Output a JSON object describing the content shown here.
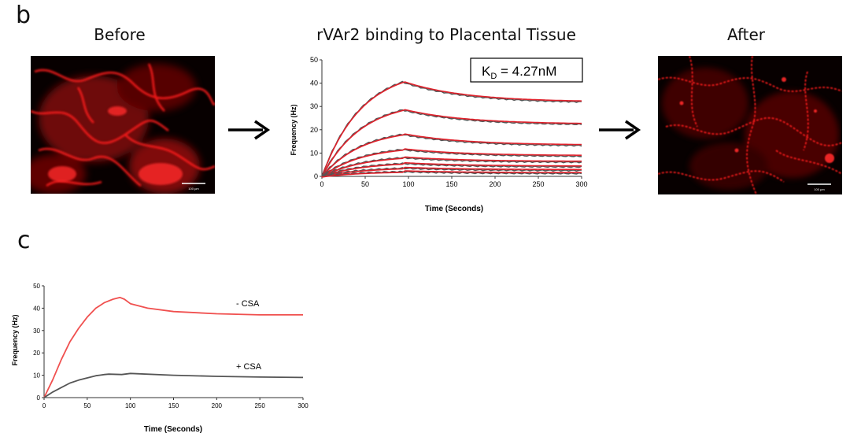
{
  "panel_b": {
    "letter": "b",
    "before_title": "Before",
    "after_title": "After",
    "scale_bar_label": "100 µm"
  },
  "panel_c": {
    "letter": "c"
  },
  "chart_data": [
    {
      "type": "line",
      "title": "rVAr2 binding to Placental Tissue",
      "xlabel": "Time (Seconds)",
      "ylabel": "Frequency (Hz)",
      "xlim": [
        0,
        300
      ],
      "ylim": [
        0,
        50
      ],
      "xticks": [
        0,
        50,
        100,
        150,
        200,
        250,
        300
      ],
      "yticks": [
        0,
        10,
        20,
        30,
        40,
        50
      ],
      "annotation": "K",
      "annotation_sub": "D",
      "annotation_rest": " = 4.27nM",
      "colors": {
        "measured": "#555555",
        "fit": "#e0212b"
      },
      "injection_end": 93,
      "series": [
        {
          "peak": 40.5,
          "end": 31.5
        },
        {
          "peak": 28.5,
          "end": 22.0
        },
        {
          "peak": 18.0,
          "end": 13.0
        },
        {
          "peak": 11.5,
          "end": 8.5
        },
        {
          "peak": 8.0,
          "end": 6.0
        },
        {
          "peak": 5.5,
          "end": 4.0
        },
        {
          "peak": 3.5,
          "end": 2.5
        },
        {
          "peak": 2.0,
          "end": 1.2
        }
      ]
    },
    {
      "type": "line",
      "title": "",
      "xlabel": "Time (Seconds)",
      "ylabel": "Frequency (Hz)",
      "xlim": [
        0,
        300
      ],
      "ylim": [
        0,
        50
      ],
      "xticks": [
        0,
        50,
        100,
        150,
        200,
        250,
        300
      ],
      "yticks": [
        0,
        10,
        20,
        30,
        40,
        50
      ],
      "series": [
        {
          "name": "- CSA",
          "color": "#f0504f",
          "x": [
            0,
            10,
            20,
            30,
            40,
            50,
            60,
            70,
            80,
            88,
            93,
            100,
            120,
            150,
            200,
            250,
            300
          ],
          "y": [
            0,
            8,
            17,
            25,
            31,
            36,
            40,
            42.5,
            44,
            44.8,
            44,
            42,
            40,
            38.5,
            37.5,
            37,
            37
          ]
        },
        {
          "name": "+ CSA",
          "color": "#555555",
          "x": [
            0,
            10,
            20,
            30,
            40,
            50,
            60,
            70,
            75,
            90,
            100,
            150,
            200,
            250,
            300
          ],
          "y": [
            0,
            2.5,
            4.5,
            6.5,
            7.8,
            8.8,
            9.8,
            10.3,
            10.5,
            10.3,
            10.8,
            10,
            9.5,
            9.2,
            9
          ]
        }
      ]
    }
  ]
}
